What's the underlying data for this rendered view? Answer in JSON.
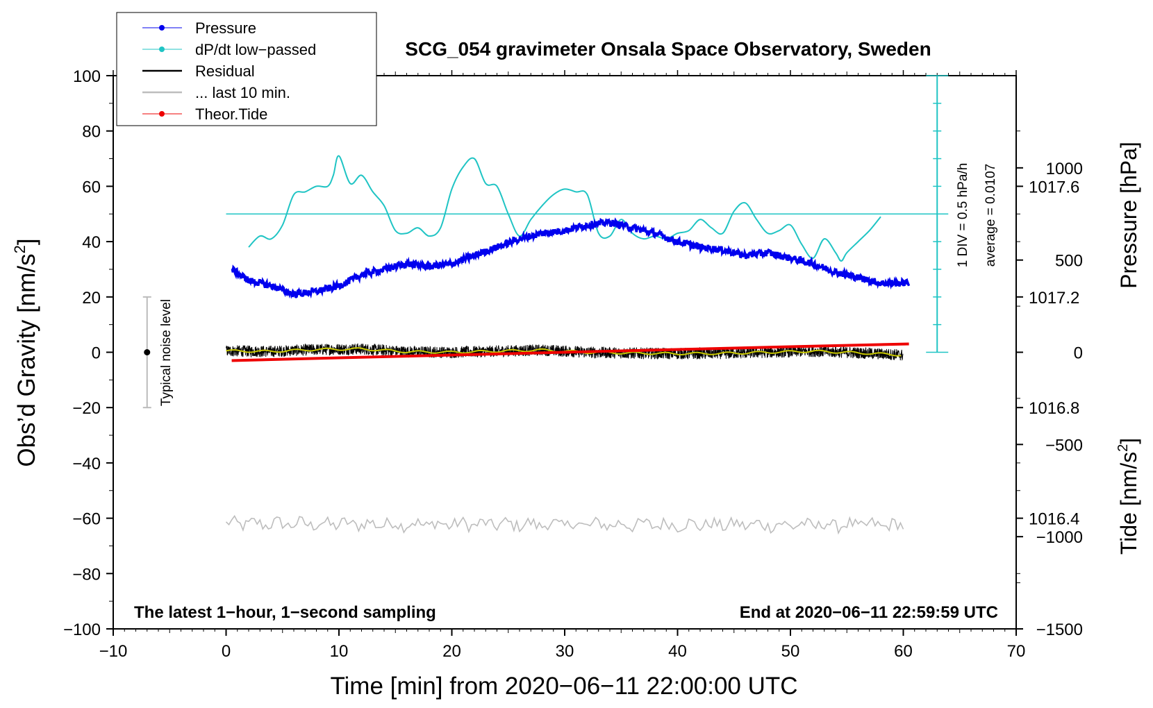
{
  "chart_data": {
    "type": "line",
    "title": "SCG_054 gravimeter Onsala Space Observatory, Sweden",
    "xlabel": "Time [min] from 2020−06−11 22:00:00 UTC",
    "ylabel_left": "Obs’d Gravity [nm/s",
    "ylabel_left_sup": "2",
    "ylabel_left_tail": "]",
    "ylabel_right_pressure": "Pressure [hPa]",
    "ylabel_right_tide": "Tide [nm/s",
    "ylabel_right_tide_sup": "2",
    "ylabel_right_tide_tail": "]",
    "xlim": [
      -10,
      70
    ],
    "ylim": [
      -100,
      100
    ],
    "pressure_ylim": [
      1016.0,
      1018.0
    ],
    "tide_ylim": [
      -1500,
      1500
    ],
    "x_ticks": [
      "−10",
      "0",
      "10",
      "20",
      "30",
      "40",
      "50",
      "60",
      "70"
    ],
    "x_tick_values": [
      -10,
      0,
      10,
      20,
      30,
      40,
      50,
      60,
      70
    ],
    "y_ticks": [
      "100",
      "80",
      "60",
      "40",
      "20",
      "0",
      "−20",
      "−40",
      "−60",
      "−80",
      "−100"
    ],
    "y_tick_values": [
      100,
      80,
      60,
      40,
      20,
      0,
      -20,
      -40,
      -60,
      -80,
      -100
    ],
    "pressure_ticks": [
      "1017.6",
      "1017.2",
      "1016.8",
      "1016.4"
    ],
    "pressure_tick_values": [
      1017.6,
      1017.2,
      1016.8,
      1016.4
    ],
    "tide_ticks": [
      "1000",
      "500",
      "0",
      "−500",
      "−1000",
      "−1500"
    ],
    "tide_tick_values": [
      1000,
      500,
      0,
      -500,
      -1000,
      -1500
    ],
    "legend": [
      {
        "label": "Pressure",
        "color": "#0000ee",
        "marker": true
      },
      {
        "label": "dP/dt low−passed",
        "color": "#1fc4c4",
        "marker": true
      },
      {
        "label": "Residual",
        "color": "#000000",
        "marker": false
      },
      {
        "label": "... last 10 min.",
        "color": "#bdbdbd",
        "marker": false
      },
      {
        "label": "Theor.Tide",
        "color": "#ee0000",
        "marker": true
      }
    ],
    "annotations": {
      "bottom_left": "The latest 1−hour, 1−second sampling",
      "bottom_right": "End at 2020−06−11 22:59:59 UTC",
      "noise_label": "Typical noise level",
      "div_label": "1 DIV = 0.5 hPa/h",
      "average_label": "average = 0.0107"
    },
    "noise_bar": {
      "x": -7,
      "center": 0,
      "low": -20,
      "high": 20
    },
    "dpdt_scale": {
      "x": 63,
      "baseline": 0,
      "top": 100,
      "div_step": 10,
      "average_level": 50
    },
    "series": [
      {
        "name": "Pressure",
        "axis": "pressure",
        "color": "#0000ee",
        "x": [
          0.5,
          2,
          4,
          6,
          8,
          10,
          12,
          14,
          16,
          18,
          20,
          22,
          24,
          26,
          28,
          30,
          32,
          34,
          36,
          38,
          40,
          42,
          44,
          46,
          48,
          50,
          52,
          54,
          56,
          58,
          60.5
        ],
        "values": [
          1017.3,
          1017.26,
          1017.24,
          1017.21,
          1017.22,
          1017.24,
          1017.28,
          1017.3,
          1017.32,
          1017.31,
          1017.32,
          1017.35,
          1017.38,
          1017.41,
          1017.43,
          1017.44,
          1017.46,
          1017.47,
          1017.45,
          1017.43,
          1017.4,
          1017.38,
          1017.37,
          1017.35,
          1017.36,
          1017.34,
          1017.32,
          1017.29,
          1017.27,
          1017.25,
          1017.25
        ]
      },
      {
        "name": "dP/dt low-passed",
        "axis": "gravity",
        "color": "#1fc4c4",
        "x": [
          2,
          3,
          4,
          5,
          6,
          7,
          8,
          9,
          9.5,
          10,
          11,
          12,
          13,
          14,
          15,
          16,
          17,
          18,
          19,
          20,
          21,
          22,
          23,
          24,
          25,
          26,
          27,
          28,
          29,
          30,
          31,
          32,
          33,
          34,
          35,
          36,
          37,
          38,
          39,
          40,
          41,
          42,
          43,
          44,
          45,
          46,
          47,
          48,
          49,
          50,
          51,
          52,
          53,
          54,
          54.5,
          55,
          56,
          57,
          58
        ],
        "values": [
          38,
          42,
          41,
          46,
          57,
          58,
          60,
          60,
          64,
          71,
          61,
          64,
          58,
          53,
          44,
          43,
          45,
          42,
          45,
          59,
          67,
          70,
          61,
          60,
          50,
          42,
          48,
          53,
          57,
          59,
          58,
          57,
          43,
          42,
          48,
          43,
          41,
          42,
          41,
          43,
          44,
          48,
          45,
          43,
          51,
          54,
          48,
          43,
          44,
          46,
          39,
          34,
          41,
          36,
          33,
          36,
          40,
          44,
          49
        ]
      },
      {
        "name": "Residual",
        "axis": "gravity",
        "color": "#000000",
        "x": [
          0,
          4,
          8,
          12,
          16,
          20,
          24,
          28,
          32,
          36,
          40,
          44,
          48,
          52,
          56,
          60
        ],
        "values": [
          0.5,
          0.3,
          1.0,
          1.2,
          0.2,
          0.0,
          0.4,
          0.8,
          0.0,
          -0.3,
          -0.5,
          -0.4,
          0.0,
          0.4,
          -0.2,
          -1.0
        ]
      },
      {
        "name": "... last 10 min.",
        "axis": "gravity",
        "color": "#bdbdbd",
        "x": [
          0,
          60
        ],
        "values": [
          -62,
          -62.5
        ]
      },
      {
        "name": "Theor.Tide",
        "axis": "tide",
        "color": "#ee0000",
        "x": [
          0.5,
          10,
          20,
          30,
          40,
          50,
          60.5
        ],
        "values": [
          -45,
          -30,
          -15,
          0,
          15,
          30,
          45
        ]
      }
    ]
  }
}
